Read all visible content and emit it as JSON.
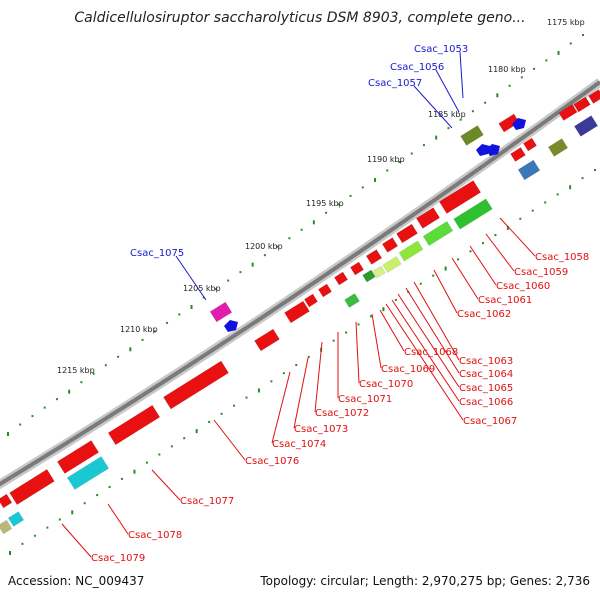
{
  "title": "Caldicellulosiruptor saccharolyticus DSM 8903, complete geno...",
  "footer": {
    "accession": "Accession: NC_009437",
    "stats": "Topology: circular; Length: 2,970,275 bp; Genes: 2,736"
  },
  "colors": {
    "upper_labels": "#1a1acc",
    "lower_labels": "#e01010",
    "tick_green": "#2a8a2a",
    "backbone": "#8a8a8a"
  },
  "ticks": [
    "1175 kbp",
    "1180 kbp",
    "1185 kbp",
    "1190 kbp",
    "1195 kbp",
    "1200 kbp",
    "1205 kbp",
    "1210 kbp",
    "1215 kbp"
  ],
  "upper_genes": [
    "Csac_1053",
    "Csac_1056",
    "Csac_1057",
    "Csac_1075"
  ],
  "lower_genes": [
    "Csac_1058",
    "Csac_1059",
    "Csac_1060",
    "Csac_1061",
    "Csac_1062",
    "Csac_1063",
    "Csac_1064",
    "Csac_1065",
    "Csac_1066",
    "Csac_1067",
    "Csac_1068",
    "Csac_1069",
    "Csac_1070",
    "Csac_1071",
    "Csac_1072",
    "Csac_1073",
    "Csac_1074",
    "Csac_1076",
    "Csac_1077",
    "Csac_1078",
    "Csac_1079"
  ]
}
